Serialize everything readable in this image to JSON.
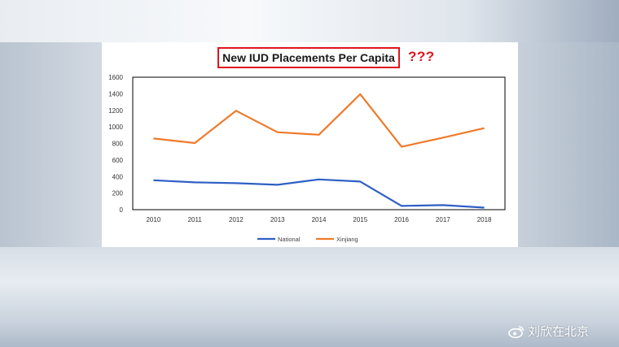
{
  "title": "New IUD Placements Per Capita",
  "annotation": "???",
  "watermark": "刘欣在北京",
  "colors": {
    "national": "#2f5fc4",
    "xinjiang": "#ee7a2a",
    "title_border": "#e0141e"
  },
  "chart_data": {
    "type": "line",
    "title": "New IUD Placements Per Capita",
    "x": [
      "2010",
      "2011",
      "2012",
      "2013",
      "2014",
      "2015",
      "2016",
      "2017",
      "2018"
    ],
    "series": [
      {
        "name": "National",
        "values": [
          355,
          330,
          320,
          300,
          365,
          340,
          45,
          55,
          25
        ]
      },
      {
        "name": "Xinjiang",
        "values": [
          860,
          805,
          1195,
          935,
          905,
          1395,
          760,
          870,
          985
        ]
      }
    ],
    "yticks": [
      "0",
      "200",
      "400",
      "600",
      "800",
      "1000",
      "1200",
      "1400",
      "1600"
    ],
    "ylim": [
      0,
      1600
    ],
    "grid": false,
    "legend": "bottom-center"
  }
}
